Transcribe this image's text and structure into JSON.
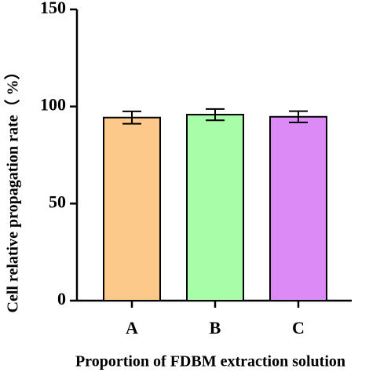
{
  "chart_data": {
    "type": "bar",
    "x_label": "Proportion of FDBM extraction solution",
    "y_label": "Cell relative propagation rate（ %）",
    "categories": [
      "A",
      "B",
      "C"
    ],
    "values": [
      94.3,
      95.8,
      94.7
    ],
    "errors": [
      3.2,
      2.9,
      2.9
    ],
    "colors": [
      "#fdc98a",
      "#a8fea8",
      "#dc8af5"
    ],
    "ylim": [
      0,
      150
    ],
    "yticks": [
      0,
      50,
      100,
      150
    ],
    "grid": false
  }
}
